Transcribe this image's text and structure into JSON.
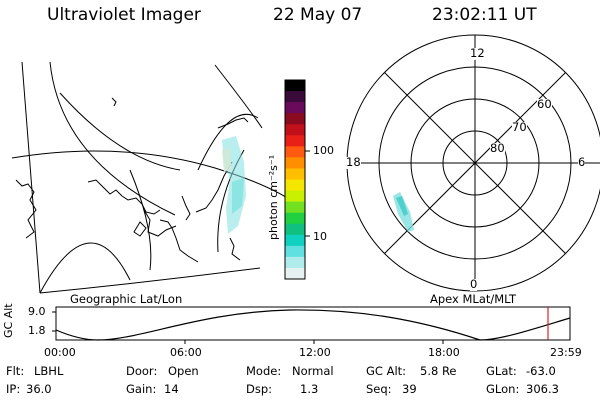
{
  "header": {
    "instrument": "Ultraviolet Imager",
    "date": "22 May 07",
    "time": "23:02:11 UT"
  },
  "left_map": {
    "label": "Geographic Lat/Lon"
  },
  "colorbar": {
    "unit_label": "photon cm⁻²s⁻¹",
    "ticks": [
      "100",
      "10"
    ],
    "colors": [
      "#000000",
      "#3a0a3a",
      "#6a0a5a",
      "#8a0a20",
      "#c0101a",
      "#e82018",
      "#ff5a10",
      "#ff8e00",
      "#ffbe00",
      "#f5e600",
      "#c8f000",
      "#70e020",
      "#20d040",
      "#10c080",
      "#10d0c0",
      "#60e0e0",
      "#b0ecec",
      "#e6f2f2"
    ]
  },
  "polar_plot": {
    "label": "Apex MLat/MLT",
    "mlt_labels": [
      "12",
      "18",
      "6",
      "0"
    ],
    "lat_labels": [
      "60",
      "70",
      "80"
    ]
  },
  "altitude_strip": {
    "ylabel": "GC Alt",
    "yticks": [
      "9.0",
      "1.8"
    ],
    "xticks": [
      "00:00",
      "06:00",
      "12:00",
      "18:00",
      "23:59"
    ],
    "current_marker_color": "#e02020"
  },
  "status": {
    "row1": [
      {
        "key": "Flt:",
        "value": "LBHL"
      },
      {
        "key": "Door:",
        "value": "Open"
      },
      {
        "key": "Mode:",
        "value": "Normal"
      },
      {
        "key": "GC Alt:",
        "value": "5.8 Re"
      },
      {
        "key": "GLat:",
        "value": "-63.0"
      }
    ],
    "row2": [
      {
        "key": "IP:",
        "value": "36.0"
      },
      {
        "key": "Gain:",
        "value": "14"
      },
      {
        "key": "Dsp:",
        "value": "1.3"
      },
      {
        "key": "Seq:",
        "value": "39"
      },
      {
        "key": "GLon:",
        "value": "306.3"
      }
    ]
  }
}
